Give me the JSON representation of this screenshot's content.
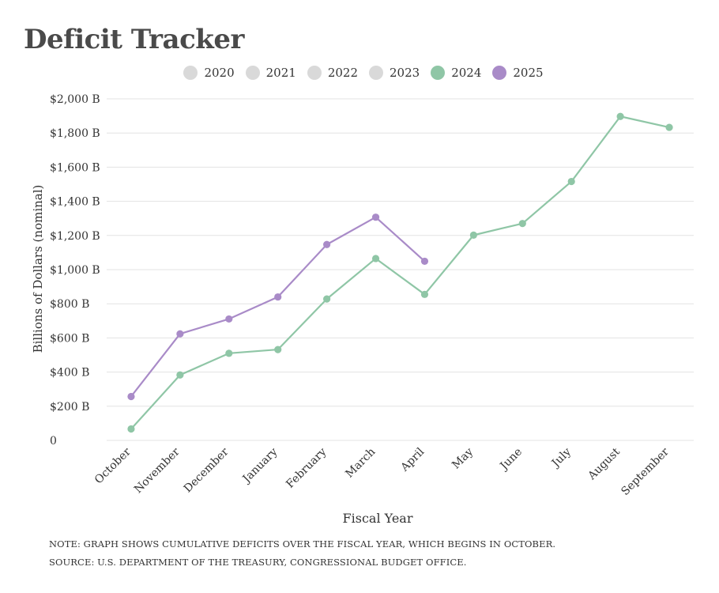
{
  "page": {
    "title": "Deficit Tracker",
    "note": "NOTE: GRAPH SHOWS CUMULATIVE DEFICITS OVER THE FISCAL YEAR, WHICH BEGINS IN OCTOBER.",
    "source": "SOURCE: U.S. DEPARTMENT OF THE TREASURY, CONGRESSIONAL BUDGET OFFICE."
  },
  "legend": [
    {
      "label": "2020",
      "color": "#d9d9d9",
      "active": false
    },
    {
      "label": "2021",
      "color": "#d9d9d9",
      "active": false
    },
    {
      "label": "2022",
      "color": "#d9d9d9",
      "active": false
    },
    {
      "label": "2023",
      "color": "#d9d9d9",
      "active": false
    },
    {
      "label": "2024",
      "color": "#8fc6a6",
      "active": true
    },
    {
      "label": "2025",
      "color": "#a98bc8",
      "active": true
    }
  ],
  "chart_data": {
    "type": "line",
    "title": "Deficit Tracker",
    "xlabel": "Fiscal Year",
    "ylabel": "Billions of Dollars (nominal)",
    "categories": [
      "October",
      "November",
      "December",
      "January",
      "February",
      "March",
      "April",
      "May",
      "June",
      "July",
      "August",
      "September"
    ],
    "ylim": [
      0,
      2000
    ],
    "yticks": [
      0,
      200,
      400,
      600,
      800,
      1000,
      1200,
      1400,
      1600,
      1800,
      2000
    ],
    "ytick_labels": [
      "0",
      "$200 B",
      "$400 B",
      "$600 B",
      "$800 B",
      "$1,000 B",
      "$1,200 B",
      "$1,400 B",
      "$1,600 B",
      "$1,800 B",
      "$2,000 B"
    ],
    "grid": true,
    "legend_position": "top-center",
    "series": [
      {
        "name": "2024",
        "color": "#8fc6a6",
        "values": [
          67,
          383,
          510,
          532,
          828,
          1065,
          855,
          1202,
          1270,
          1516,
          1897,
          1833
        ]
      },
      {
        "name": "2025",
        "color": "#a98bc8",
        "values": [
          257,
          624,
          711,
          840,
          1147,
          1307,
          1049,
          null,
          null,
          null,
          null,
          null
        ]
      }
    ]
  }
}
